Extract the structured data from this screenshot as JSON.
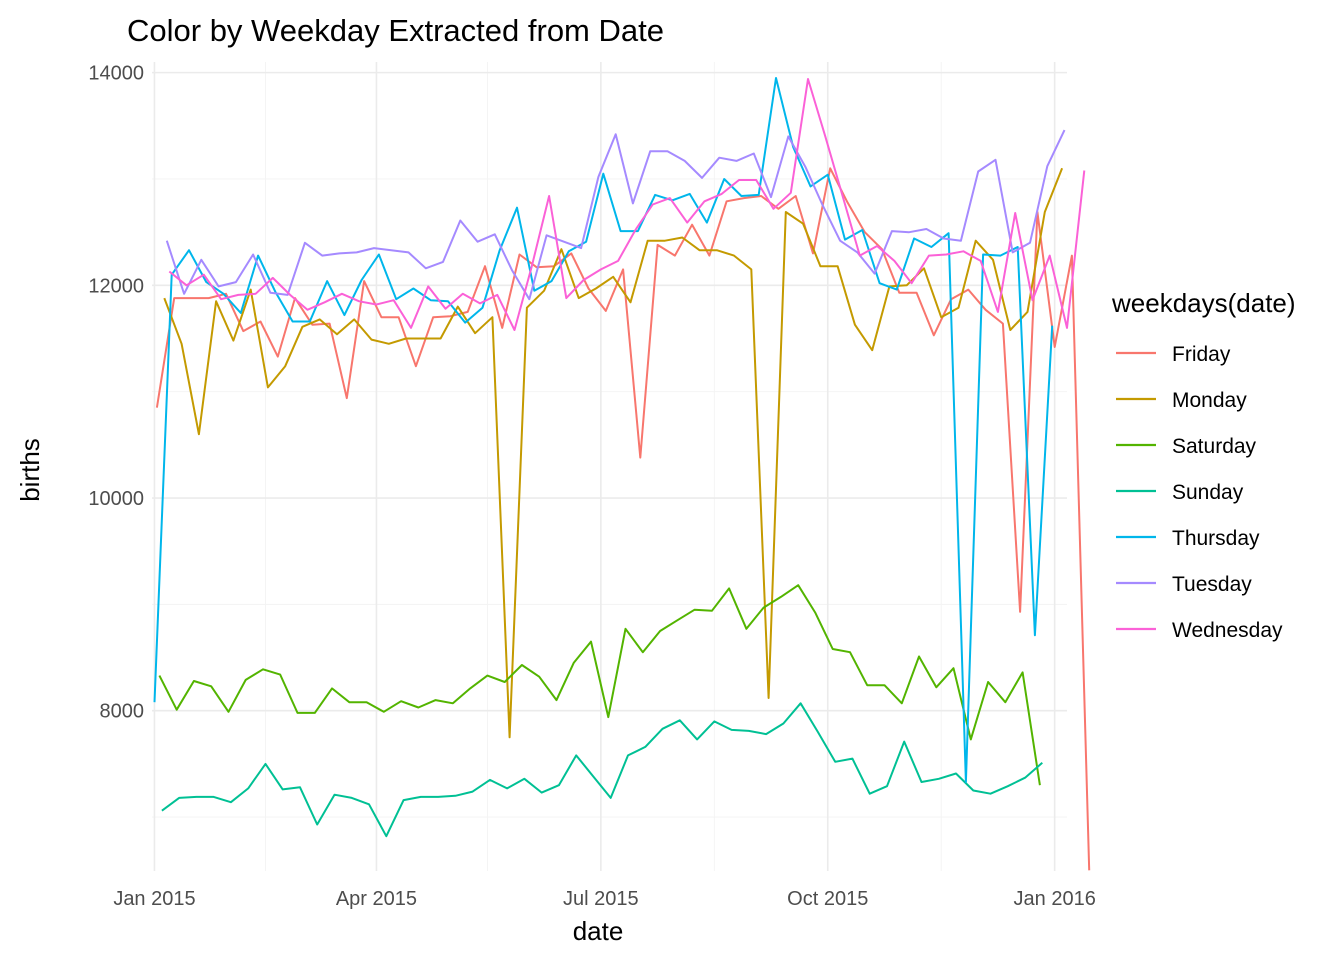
{
  "chart_data": {
    "type": "line",
    "title": "Color by Weekday Extracted from Date",
    "xlabel": "date",
    "ylabel": "births",
    "xlim": [
      "2014-12-31",
      "2016-01-06"
    ],
    "ylim": [
      6500,
      14000
    ],
    "x_ticks": [
      {
        "date": "2015-01-01",
        "label": "Jan 2015"
      },
      {
        "date": "2015-04-01",
        "label": "Apr 2015"
      },
      {
        "date": "2015-07-01",
        "label": "Jul 2015"
      },
      {
        "date": "2015-10-01",
        "label": "Oct 2015"
      },
      {
        "date": "2016-01-01",
        "label": "Jan 2016"
      }
    ],
    "x_minor_ticks": [
      "2015-02-15",
      "2015-05-16",
      "2015-08-16",
      "2015-11-16"
    ],
    "y_ticks": [
      8000,
      10000,
      12000,
      14000
    ],
    "y_minor_ticks": [
      7000,
      9000,
      11000,
      13000
    ],
    "grid": true,
    "legend": {
      "title": "weekdays(date)",
      "position": "right"
    },
    "series": [
      {
        "name": "Friday",
        "color": "#F8766D",
        "start": "2015-01-02",
        "values": [
          10850,
          11880,
          11880,
          11880,
          11920,
          11570,
          11660,
          11330,
          11880,
          11630,
          11640,
          10940,
          12040,
          11700,
          11700,
          11240,
          11700,
          11710,
          11750,
          12180,
          11600,
          12290,
          12170,
          12180,
          12300,
          11970,
          11760,
          12150,
          10380,
          12380,
          12280,
          12570,
          12280,
          12790,
          12820,
          12840,
          12720,
          12840,
          12300,
          13100,
          12780,
          12500,
          12340,
          11930,
          11930,
          11530,
          11870,
          11960,
          11770,
          11640,
          8930,
          12690,
          11420,
          12280,
          6500
        ]
      },
      {
        "name": "Monday",
        "color": "#C49A00",
        "start": "2015-01-05",
        "values": [
          11880,
          11450,
          10600,
          11850,
          11480,
          11960,
          11040,
          11240,
          11610,
          11680,
          11540,
          11680,
          11490,
          11450,
          11500,
          11500,
          11500,
          11800,
          11550,
          11700,
          7750,
          11790,
          11950,
          12340,
          11880,
          11970,
          12080,
          11840,
          12420,
          12420,
          12450,
          12330,
          12330,
          12280,
          12150,
          8120,
          12690,
          12580,
          12180,
          12180,
          11630,
          11390,
          11990,
          12000,
          12160,
          11700,
          11790,
          12420,
          12240,
          11580,
          11750,
          12690,
          13100
        ]
      },
      {
        "name": "Saturday",
        "color": "#53B400",
        "start": "2015-01-03",
        "values": [
          8330,
          8010,
          8280,
          8230,
          7990,
          8290,
          8390,
          8340,
          7980,
          7980,
          8210,
          8080,
          8080,
          7990,
          8090,
          8030,
          8100,
          8070,
          8210,
          8330,
          8270,
          8430,
          8320,
          8100,
          8450,
          8650,
          7940,
          8770,
          8550,
          8750,
          8850,
          8950,
          8940,
          9150,
          8770,
          8970,
          9070,
          9180,
          8920,
          8580,
          8550,
          8240,
          8240,
          8070,
          8510,
          8220,
          8400,
          7730,
          8270,
          8080,
          8360,
          7300
        ]
      },
      {
        "name": "Sunday",
        "color": "#00C094",
        "start": "2015-01-04",
        "values": [
          7060,
          7180,
          7190,
          7190,
          7140,
          7270,
          7500,
          7260,
          7280,
          6930,
          7210,
          7180,
          7120,
          6820,
          7160,
          7190,
          7190,
          7200,
          7240,
          7350,
          7270,
          7360,
          7230,
          7300,
          7580,
          7380,
          7180,
          7580,
          7660,
          7830,
          7910,
          7730,
          7900,
          7820,
          7810,
          7780,
          7880,
          8070,
          7800,
          7520,
          7550,
          7220,
          7290,
          7710,
          7330,
          7360,
          7410,
          7250,
          7220,
          7290,
          7370,
          7510
        ]
      },
      {
        "name": "Thursday",
        "color": "#00B6EB",
        "start": "2015-01-01",
        "values": [
          8080,
          12100,
          12330,
          12030,
          11920,
          11740,
          12280,
          11940,
          11660,
          11660,
          12040,
          11720,
          12050,
          12290,
          11870,
          11970,
          11860,
          11850,
          11650,
          11790,
          12330,
          12730,
          11950,
          12040,
          12320,
          12410,
          13050,
          12510,
          12510,
          12850,
          12800,
          12860,
          12590,
          13000,
          12840,
          12850,
          13950,
          13300,
          12930,
          13040,
          12430,
          12520,
          12020,
          11960,
          12440,
          12360,
          12490,
          7330,
          12290,
          12280,
          12360,
          8710,
          11620
        ]
      },
      {
        "name": "Tuesday",
        "color": "#A58AFF",
        "start": "2015-01-06",
        "values": [
          12420,
          11920,
          12240,
          11990,
          12030,
          12290,
          11930,
          11910,
          12400,
          12280,
          12300,
          12310,
          12350,
          12330,
          12310,
          12160,
          12220,
          12610,
          12410,
          12480,
          12140,
          11870,
          12470,
          12410,
          12350,
          13020,
          13420,
          12770,
          13260,
          13260,
          13170,
          13010,
          13200,
          13170,
          13240,
          12830,
          13400,
          13110,
          12750,
          12420,
          12310,
          12110,
          12510,
          12500,
          12530,
          12440,
          12420,
          13070,
          13180,
          12310,
          12400,
          13120,
          13460
        ]
      },
      {
        "name": "Wednesday",
        "color": "#FB61D7",
        "start": "2015-01-07",
        "values": [
          12130,
          12000,
          12100,
          11870,
          11910,
          11920,
          12070,
          11910,
          11770,
          11840,
          11920,
          11850,
          11820,
          11860,
          11600,
          11990,
          11780,
          11920,
          11830,
          11910,
          11580,
          12180,
          12840,
          11880,
          12050,
          12150,
          12230,
          12520,
          12760,
          12820,
          12590,
          12790,
          12860,
          12990,
          12990,
          12720,
          12870,
          13940,
          13400,
          12840,
          12280,
          12370,
          12230,
          12020,
          12280,
          12290,
          12320,
          12230,
          11750,
          12680,
          11860,
          12280,
          11600,
          13080
        ]
      }
    ]
  }
}
